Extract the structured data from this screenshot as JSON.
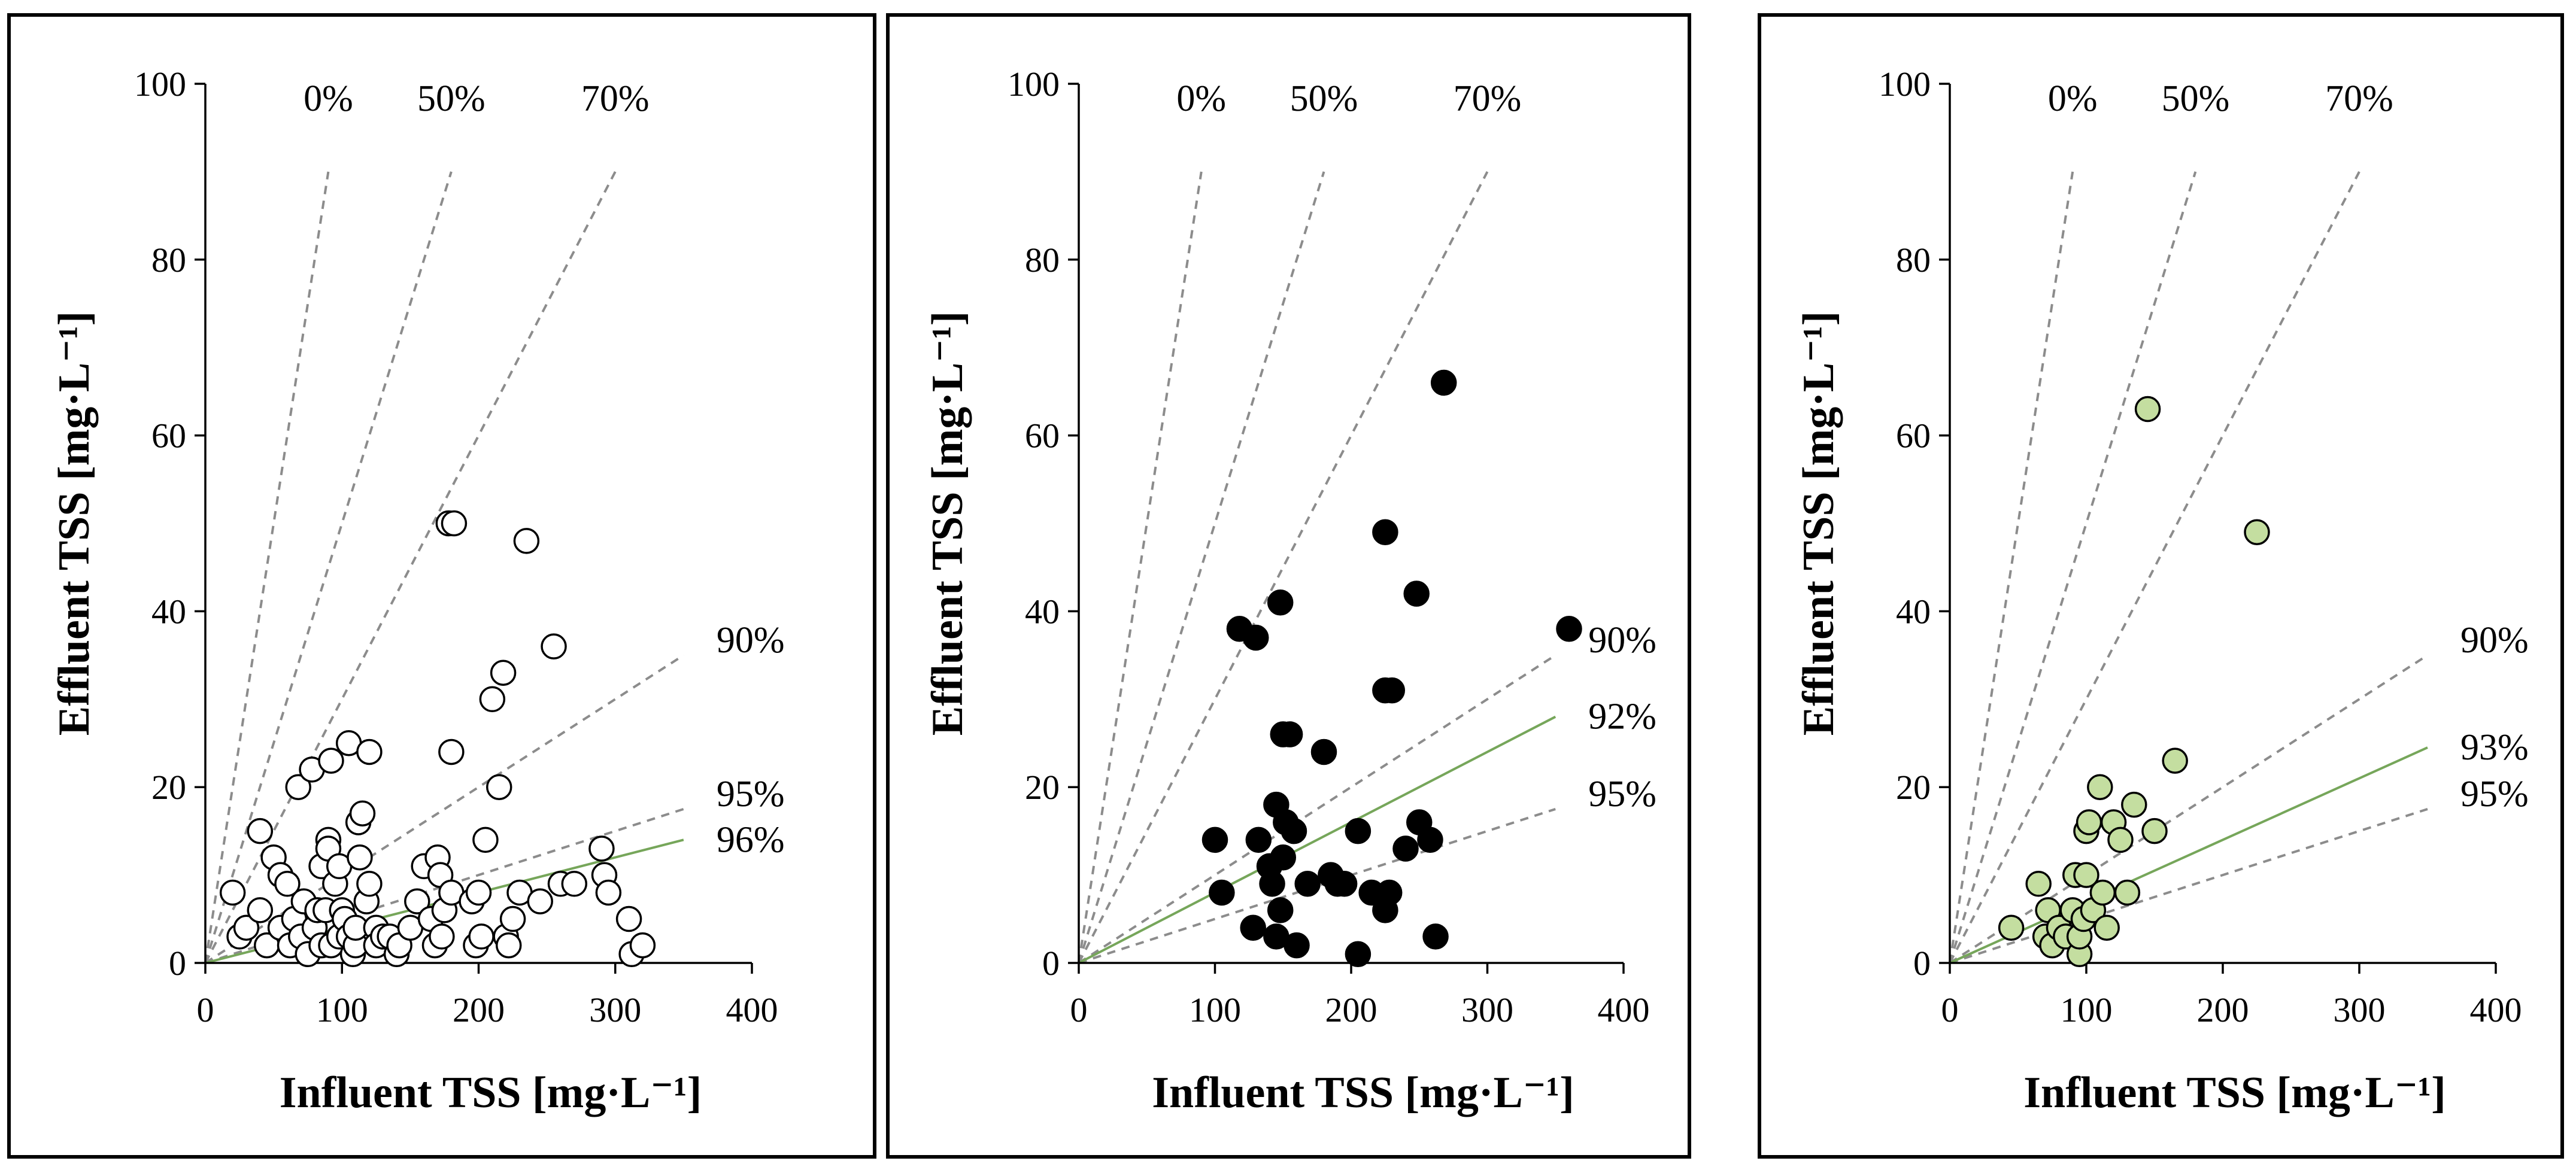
{
  "chart_data": [
    {
      "type": "scatter",
      "panel": "left",
      "xlabel": "Influent TSS [mg·L⁻¹]",
      "ylabel": "Effluent TSS [mg·L⁻¹]",
      "xlim": [
        0,
        400
      ],
      "ylim": [
        0,
        100
      ],
      "x_ticks": [
        "0",
        "100",
        "200",
        "300",
        "400"
      ],
      "y_ticks": [
        "0",
        "20",
        "40",
        "60",
        "80",
        "100"
      ],
      "marker_fill": "#ffffff",
      "marker_edge": "#000000",
      "trend_color": "#76a65a",
      "reference_lines": [
        {
          "label": "0%",
          "removal": 0.0
        },
        {
          "label": "50%",
          "removal": 0.5
        },
        {
          "label": "70%",
          "removal": 0.7
        },
        {
          "label": "90%",
          "removal": 0.9
        },
        {
          "label": "95%",
          "removal": 0.95
        }
      ],
      "trend": {
        "label": "96%",
        "removal": 0.96
      },
      "points": [
        [
          20,
          8
        ],
        [
          25,
          3
        ],
        [
          30,
          4
        ],
        [
          40,
          15
        ],
        [
          40,
          6
        ],
        [
          45,
          2
        ],
        [
          50,
          12
        ],
        [
          55,
          4
        ],
        [
          55,
          10
        ],
        [
          60,
          9
        ],
        [
          62,
          2
        ],
        [
          65,
          5
        ],
        [
          68,
          20
        ],
        [
          70,
          3
        ],
        [
          72,
          7
        ],
        [
          75,
          1
        ],
        [
          78,
          22
        ],
        [
          80,
          4
        ],
        [
          82,
          6
        ],
        [
          85,
          2
        ],
        [
          85,
          11
        ],
        [
          88,
          6
        ],
        [
          90,
          14
        ],
        [
          90,
          13
        ],
        [
          92,
          23
        ],
        [
          92,
          2
        ],
        [
          95,
          9
        ],
        [
          98,
          11
        ],
        [
          98,
          3
        ],
        [
          100,
          6
        ],
        [
          102,
          5
        ],
        [
          105,
          25
        ],
        [
          105,
          3
        ],
        [
          108,
          1
        ],
        [
          110,
          2
        ],
        [
          110,
          4
        ],
        [
          112,
          16
        ],
        [
          113,
          12
        ],
        [
          115,
          17
        ],
        [
          118,
          7
        ],
        [
          120,
          24
        ],
        [
          120,
          9
        ],
        [
          125,
          4
        ],
        [
          125,
          2
        ],
        [
          130,
          3
        ],
        [
          135,
          3
        ],
        [
          140,
          1
        ],
        [
          142,
          2
        ],
        [
          150,
          4
        ],
        [
          155,
          7
        ],
        [
          160,
          11
        ],
        [
          165,
          5
        ],
        [
          168,
          2
        ],
        [
          170,
          12
        ],
        [
          172,
          10
        ],
        [
          173,
          3
        ],
        [
          175,
          6
        ],
        [
          178,
          50
        ],
        [
          180,
          24
        ],
        [
          180,
          8
        ],
        [
          182,
          50
        ],
        [
          195,
          7
        ],
        [
          198,
          2
        ],
        [
          200,
          8
        ],
        [
          202,
          3
        ],
        [
          205,
          14
        ],
        [
          210,
          30
        ],
        [
          215,
          20
        ],
        [
          218,
          33
        ],
        [
          220,
          3
        ],
        [
          222,
          2
        ],
        [
          225,
          5
        ],
        [
          230,
          8
        ],
        [
          235,
          48
        ],
        [
          245,
          7
        ],
        [
          255,
          36
        ],
        [
          260,
          9
        ],
        [
          270,
          9
        ],
        [
          290,
          13
        ],
        [
          292,
          10
        ],
        [
          295,
          8
        ],
        [
          310,
          5
        ],
        [
          312,
          1
        ],
        [
          320,
          2
        ]
      ]
    },
    {
      "type": "scatter",
      "panel": "middle",
      "xlabel": "Influent TSS [mg·L⁻¹]",
      "ylabel": "Effluent TSS [mg·L⁻¹]",
      "xlim": [
        0,
        400
      ],
      "ylim": [
        0,
        100
      ],
      "x_ticks": [
        "0",
        "100",
        "200",
        "300",
        "400"
      ],
      "y_ticks": [
        "0",
        "20",
        "40",
        "60",
        "80",
        "100"
      ],
      "marker_fill": "#000000",
      "marker_edge": "#000000",
      "trend_color": "#76a65a",
      "reference_lines": [
        {
          "label": "0%",
          "removal": 0.0
        },
        {
          "label": "50%",
          "removal": 0.5
        },
        {
          "label": "70%",
          "removal": 0.7
        },
        {
          "label": "90%",
          "removal": 0.9
        },
        {
          "label": "95%",
          "removal": 0.95
        }
      ],
      "trend": {
        "label": "92%",
        "removal": 0.92
      },
      "points": [
        [
          100,
          14
        ],
        [
          105,
          8
        ],
        [
          118,
          38
        ],
        [
          128,
          4
        ],
        [
          130,
          37
        ],
        [
          132,
          14
        ],
        [
          140,
          11
        ],
        [
          142,
          9
        ],
        [
          145,
          18
        ],
        [
          145,
          3
        ],
        [
          148,
          6
        ],
        [
          148,
          41
        ],
        [
          150,
          12
        ],
        [
          150,
          26
        ],
        [
          152,
          16
        ],
        [
          155,
          26
        ],
        [
          158,
          15
        ],
        [
          160,
          2
        ],
        [
          168,
          9
        ],
        [
          180,
          24
        ],
        [
          185,
          10
        ],
        [
          190,
          9
        ],
        [
          195,
          9
        ],
        [
          205,
          15
        ],
        [
          205,
          1
        ],
        [
          215,
          8
        ],
        [
          225,
          31
        ],
        [
          225,
          6
        ],
        [
          225,
          49
        ],
        [
          228,
          8
        ],
        [
          230,
          31
        ],
        [
          240,
          13
        ],
        [
          248,
          42
        ],
        [
          250,
          16
        ],
        [
          258,
          14
        ],
        [
          262,
          3
        ],
        [
          268,
          66
        ],
        [
          360,
          38
        ]
      ]
    },
    {
      "type": "scatter",
      "panel": "right",
      "xlabel": "Influent TSS [mg·L⁻¹]",
      "ylabel": "Effluent TSS [mg·L⁻¹]",
      "xlim": [
        0,
        400
      ],
      "ylim": [
        0,
        100
      ],
      "x_ticks": [
        "0",
        "100",
        "200",
        "300",
        "400"
      ],
      "y_ticks": [
        "0",
        "20",
        "40",
        "60",
        "80",
        "100"
      ],
      "marker_fill": "#c4dea0",
      "marker_edge": "#000000",
      "trend_color": "#76a65a",
      "reference_lines": [
        {
          "label": "0%",
          "removal": 0.0
        },
        {
          "label": "50%",
          "removal": 0.5
        },
        {
          "label": "70%",
          "removal": 0.7
        },
        {
          "label": "90%",
          "removal": 0.9
        },
        {
          "label": "95%",
          "removal": 0.95
        }
      ],
      "trend": {
        "label": "93%",
        "removal": 0.93
      },
      "points": [
        [
          45,
          4
        ],
        [
          65,
          9
        ],
        [
          70,
          3
        ],
        [
          72,
          6
        ],
        [
          75,
          2
        ],
        [
          80,
          4
        ],
        [
          85,
          3
        ],
        [
          90,
          6
        ],
        [
          92,
          10
        ],
        [
          95,
          1
        ],
        [
          95,
          3
        ],
        [
          98,
          5
        ],
        [
          100,
          10
        ],
        [
          100,
          15
        ],
        [
          102,
          16
        ],
        [
          105,
          6
        ],
        [
          110,
          20
        ],
        [
          112,
          8
        ],
        [
          115,
          4
        ],
        [
          120,
          16
        ],
        [
          125,
          14
        ],
        [
          130,
          8
        ],
        [
          135,
          18
        ],
        [
          145,
          63
        ],
        [
          150,
          15
        ],
        [
          165,
          23
        ],
        [
          225,
          49
        ]
      ]
    }
  ]
}
